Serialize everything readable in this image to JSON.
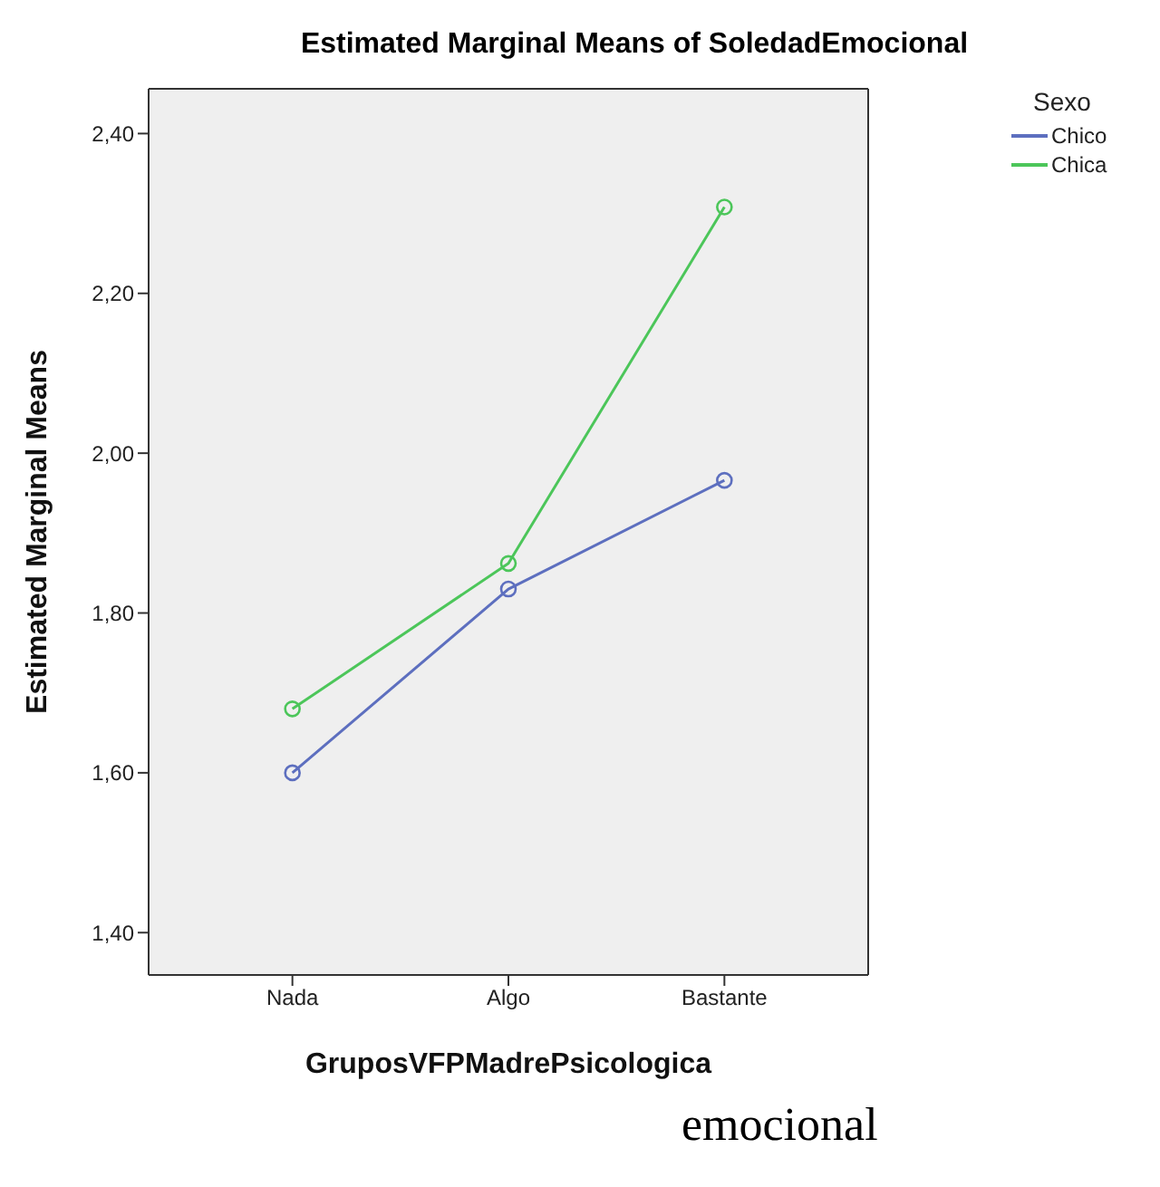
{
  "chart_data": {
    "type": "line",
    "title": "Estimated Marginal Means of SoledadEmocional",
    "xlabel": "GruposVFPMadrePsicologica",
    "ylabel": "Estimated Marginal Means",
    "legend_title": "Sexo",
    "categories": [
      "Nada",
      "Algo",
      "Bastante"
    ],
    "series": [
      {
        "name": "Chico",
        "color": "#5d6fbf",
        "values": [
          1.6,
          1.83,
          1.966
        ]
      },
      {
        "name": "Chica",
        "color": "#4cc65a",
        "values": [
          1.68,
          1.862,
          2.308
        ]
      }
    ],
    "ylim": [
      1.347,
      2.456
    ],
    "yticks": [
      {
        "value": 1.4,
        "label": "1,40"
      },
      {
        "value": 1.6,
        "label": "1,60"
      },
      {
        "value": 1.8,
        "label": "1,80"
      },
      {
        "value": 2.0,
        "label": "2,00"
      },
      {
        "value": 2.2,
        "label": "2,20"
      },
      {
        "value": 2.4,
        "label": "2,40"
      }
    ],
    "grid": false,
    "legend": "top right",
    "marker": "circle",
    "line_style": "solid",
    "annotations": [
      "emocional"
    ]
  }
}
